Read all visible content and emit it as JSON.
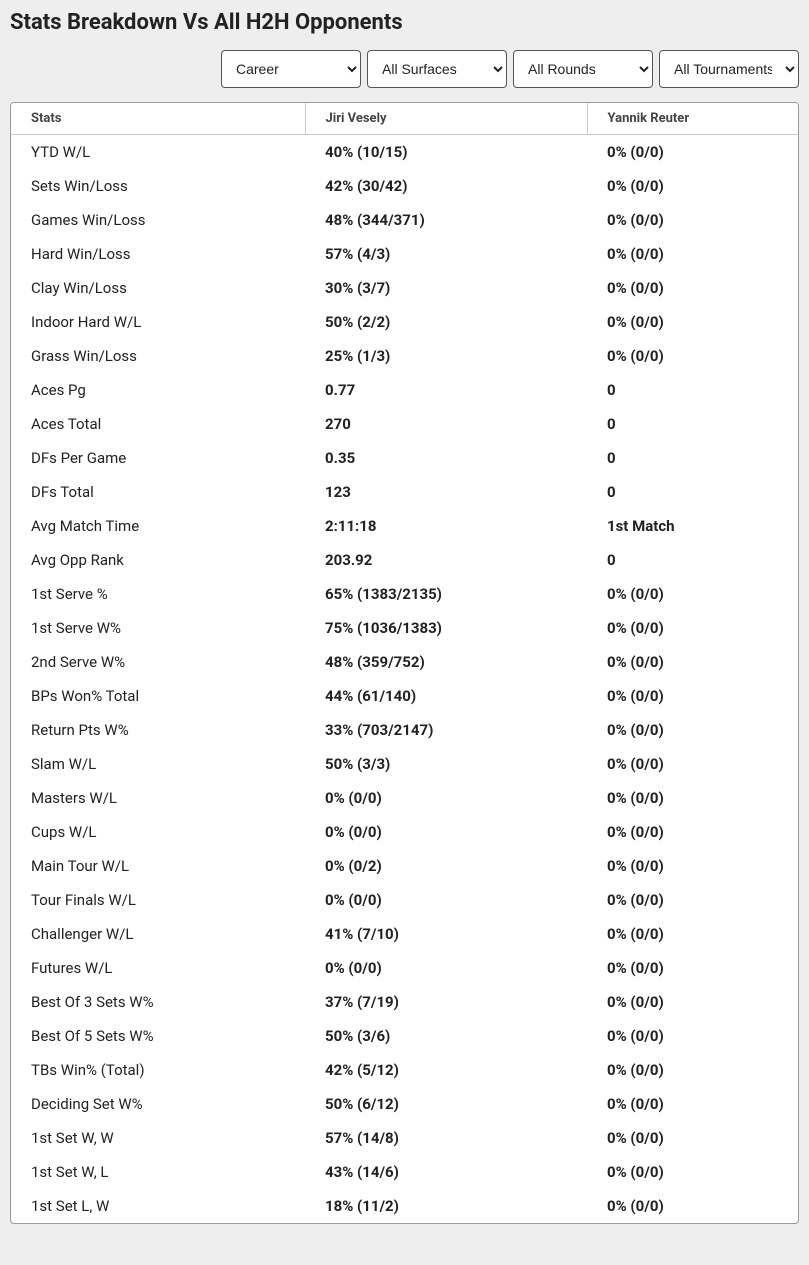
{
  "title": "Stats Breakdown Vs All H2H Opponents",
  "filters": {
    "career": "Career",
    "surfaces": "All Surfaces",
    "rounds": "All Rounds",
    "tournaments": "All Tournaments"
  },
  "columns": {
    "stats": "Stats",
    "player1": "Jiri Vesely",
    "player2": "Yannik Reuter"
  },
  "rows": [
    {
      "label": "YTD W/L",
      "p1": "40% (10/15)",
      "p2": "0% (0/0)"
    },
    {
      "label": "Sets Win/Loss",
      "p1": "42% (30/42)",
      "p2": "0% (0/0)"
    },
    {
      "label": "Games Win/Loss",
      "p1": "48% (344/371)",
      "p2": "0% (0/0)"
    },
    {
      "label": "Hard Win/Loss",
      "p1": "57% (4/3)",
      "p2": "0% (0/0)"
    },
    {
      "label": "Clay Win/Loss",
      "p1": "30% (3/7)",
      "p2": "0% (0/0)"
    },
    {
      "label": "Indoor Hard W/L",
      "p1": "50% (2/2)",
      "p2": "0% (0/0)"
    },
    {
      "label": "Grass Win/Loss",
      "p1": "25% (1/3)",
      "p2": "0% (0/0)"
    },
    {
      "label": "Aces Pg",
      "p1": "0.77",
      "p2": "0"
    },
    {
      "label": "Aces Total",
      "p1": "270",
      "p2": "0"
    },
    {
      "label": "DFs Per Game",
      "p1": "0.35",
      "p2": "0"
    },
    {
      "label": "DFs Total",
      "p1": "123",
      "p2": "0"
    },
    {
      "label": "Avg Match Time",
      "p1": "2:11:18",
      "p2": "1st Match"
    },
    {
      "label": "Avg Opp Rank",
      "p1": "203.92",
      "p2": "0"
    },
    {
      "label": "1st Serve %",
      "p1": "65% (1383/2135)",
      "p2": "0% (0/0)"
    },
    {
      "label": "1st Serve W%",
      "p1": "75% (1036/1383)",
      "p2": "0% (0/0)"
    },
    {
      "label": "2nd Serve W%",
      "p1": "48% (359/752)",
      "p2": "0% (0/0)"
    },
    {
      "label": "BPs Won% Total",
      "p1": "44% (61/140)",
      "p2": "0% (0/0)"
    },
    {
      "label": "Return Pts W%",
      "p1": "33% (703/2147)",
      "p2": "0% (0/0)"
    },
    {
      "label": "Slam W/L",
      "p1": "50% (3/3)",
      "p2": "0% (0/0)"
    },
    {
      "label": "Masters W/L",
      "p1": "0% (0/0)",
      "p2": "0% (0/0)"
    },
    {
      "label": "Cups W/L",
      "p1": "0% (0/0)",
      "p2": "0% (0/0)"
    },
    {
      "label": "Main Tour W/L",
      "p1": "0% (0/2)",
      "p2": "0% (0/0)"
    },
    {
      "label": "Tour Finals W/L",
      "p1": "0% (0/0)",
      "p2": "0% (0/0)"
    },
    {
      "label": "Challenger W/L",
      "p1": "41% (7/10)",
      "p2": "0% (0/0)"
    },
    {
      "label": "Futures W/L",
      "p1": "0% (0/0)",
      "p2": "0% (0/0)"
    },
    {
      "label": "Best Of 3 Sets W%",
      "p1": "37% (7/19)",
      "p2": "0% (0/0)"
    },
    {
      "label": "Best Of 5 Sets W%",
      "p1": "50% (3/6)",
      "p2": "0% (0/0)"
    },
    {
      "label": "TBs Win% (Total)",
      "p1": "42% (5/12)",
      "p2": "0% (0/0)"
    },
    {
      "label": "Deciding Set W%",
      "p1": "50% (6/12)",
      "p2": "0% (0/0)"
    },
    {
      "label": "1st Set W, W",
      "p1": "57% (14/8)",
      "p2": "0% (0/0)"
    },
    {
      "label": "1st Set W, L",
      "p1": "43% (14/6)",
      "p2": "0% (0/0)"
    },
    {
      "label": "1st Set L, W",
      "p1": "18% (11/2)",
      "p2": "0% (0/0)"
    }
  ]
}
